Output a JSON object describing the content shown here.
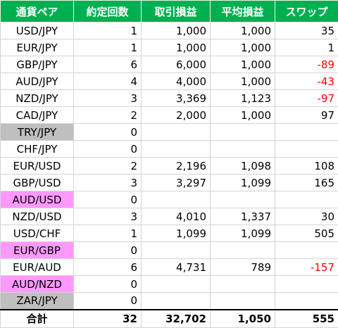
{
  "table": {
    "headers": [
      "通貨ペア",
      "約定回数",
      "取引損益",
      "平均損益",
      "スワップ"
    ],
    "rows": [
      {
        "pair": "USD/JPY",
        "trades": "1",
        "profit": "1,000",
        "avg": "1,000",
        "swap": "35"
      },
      {
        "pair": "EUR/JPY",
        "trades": "1",
        "profit": "1,000",
        "avg": "1,000",
        "swap": "1"
      },
      {
        "pair": "GBP/JPY",
        "trades": "6",
        "profit": "6,000",
        "avg": "1,000",
        "swap": "-89"
      },
      {
        "pair": "AUD/JPY",
        "trades": "4",
        "profit": "4,000",
        "avg": "1,000",
        "swap": "-43"
      },
      {
        "pair": "NZD/JPY",
        "trades": "3",
        "profit": "3,369",
        "avg": "1,123",
        "swap": "-97"
      },
      {
        "pair": "CAD/JPY",
        "trades": "2",
        "profit": "2,000",
        "avg": "1,000",
        "swap": "97"
      },
      {
        "pair": "TRY/JPY",
        "trades": "0",
        "profit": "",
        "avg": "",
        "swap": ""
      },
      {
        "pair": "CHF/JPY",
        "trades": "0",
        "profit": "",
        "avg": "",
        "swap": ""
      },
      {
        "pair": "EUR/USD",
        "trades": "2",
        "profit": "2,196",
        "avg": "1,098",
        "swap": "108"
      },
      {
        "pair": "GBP/USD",
        "trades": "3",
        "profit": "3,297",
        "avg": "1,099",
        "swap": "165"
      },
      {
        "pair": "AUD/USD",
        "trades": "0",
        "profit": "",
        "avg": "",
        "swap": ""
      },
      {
        "pair": "NZD/USD",
        "trades": "3",
        "profit": "4,010",
        "avg": "1,337",
        "swap": "30"
      },
      {
        "pair": "USD/CHF",
        "trades": "1",
        "profit": "1,099",
        "avg": "1,099",
        "swap": "505"
      },
      {
        "pair": "EUR/GBP",
        "trades": "0",
        "profit": "",
        "avg": "",
        "swap": ""
      },
      {
        "pair": "EUR/AUD",
        "trades": "6",
        "profit": "4,731",
        "avg": "789",
        "swap": "-157"
      },
      {
        "pair": "AUD/NZD",
        "trades": "0",
        "profit": "",
        "avg": "",
        "swap": ""
      },
      {
        "pair": "ZAR/JPY",
        "trades": "0",
        "profit": "",
        "avg": "",
        "swap": ""
      }
    ],
    "total": {
      "label": "合計",
      "trades": "32",
      "profit": "32,702",
      "avg": "1,050",
      "swap": "555"
    }
  },
  "colors": {
    "header_bg": "#00b050",
    "header_text": "#ffffff",
    "highlight_gray": "#bfbfbf",
    "highlight_pink": "#ff99ff",
    "negative_text": "#ff0000"
  }
}
